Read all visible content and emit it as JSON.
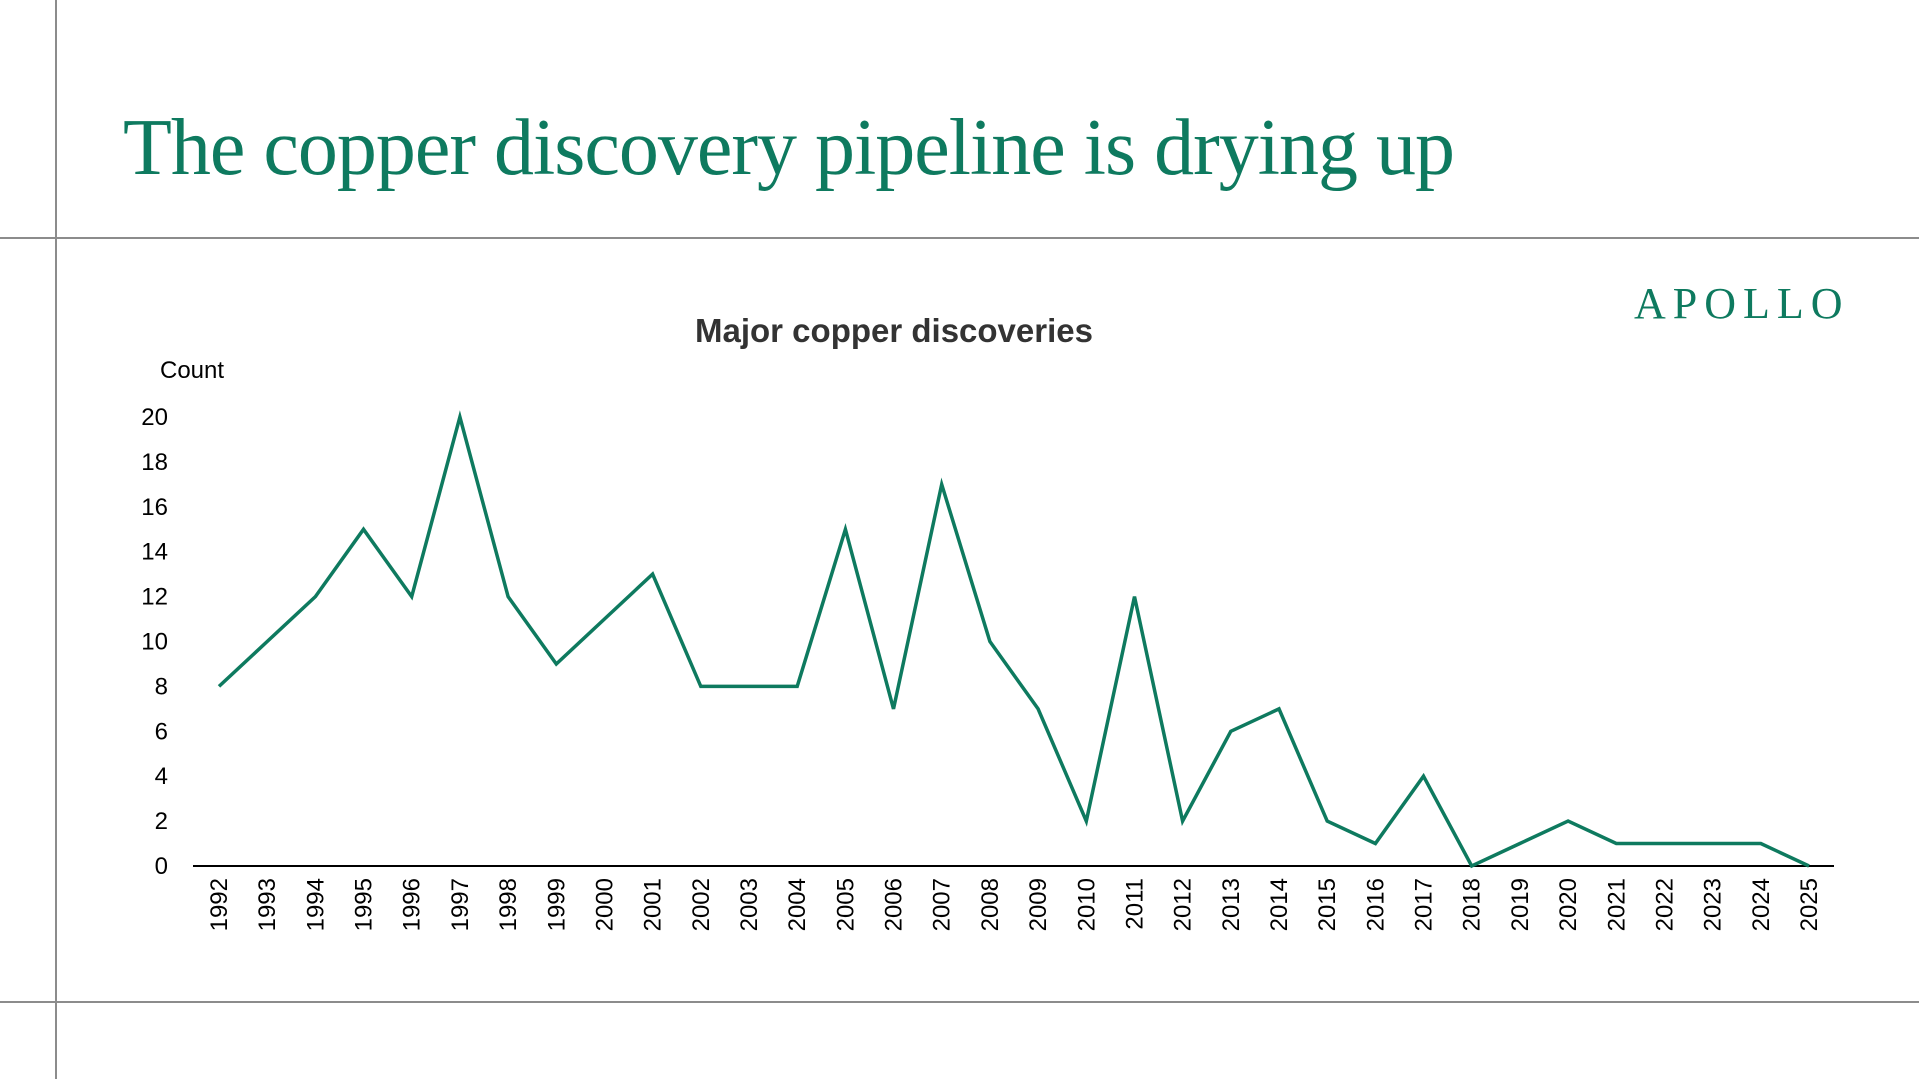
{
  "page": {
    "headline": "The copper discovery pipeline is drying up",
    "brand": "APOLLO"
  },
  "colors": {
    "accent": "#0e7a5f",
    "line": "#0e7a5f",
    "frame": "#8c8c8c",
    "axis": "#000000",
    "chart_title": "#333333"
  },
  "chart_data": {
    "type": "line",
    "title": "Major copper discoveries",
    "ylabel": "Count",
    "xlabel": "",
    "ylim": [
      0,
      20
    ],
    "yticks": [
      0,
      2,
      4,
      6,
      8,
      10,
      12,
      14,
      16,
      18,
      20
    ],
    "grid": false,
    "legend": "none",
    "categories": [
      "1992",
      "1993",
      "1994",
      "1995",
      "1996",
      "1997",
      "1998",
      "1999",
      "2000",
      "2001",
      "2002",
      "2003",
      "2004",
      "2005",
      "2006",
      "2007",
      "2008",
      "2009",
      "2010",
      "2011",
      "2012",
      "2013",
      "2014",
      "2015",
      "2016",
      "2017",
      "2018",
      "2019",
      "2020",
      "2021",
      "2022",
      "2023",
      "2024",
      "2025"
    ],
    "series": [
      {
        "values": [
          8,
          10,
          12,
          15,
          12,
          20,
          12,
          9,
          11,
          13,
          8,
          8,
          8,
          15,
          7,
          17,
          10,
          7,
          2,
          12,
          2,
          6,
          7,
          2,
          1,
          4,
          0,
          1,
          2,
          1,
          1,
          1,
          1,
          0
        ]
      }
    ]
  }
}
